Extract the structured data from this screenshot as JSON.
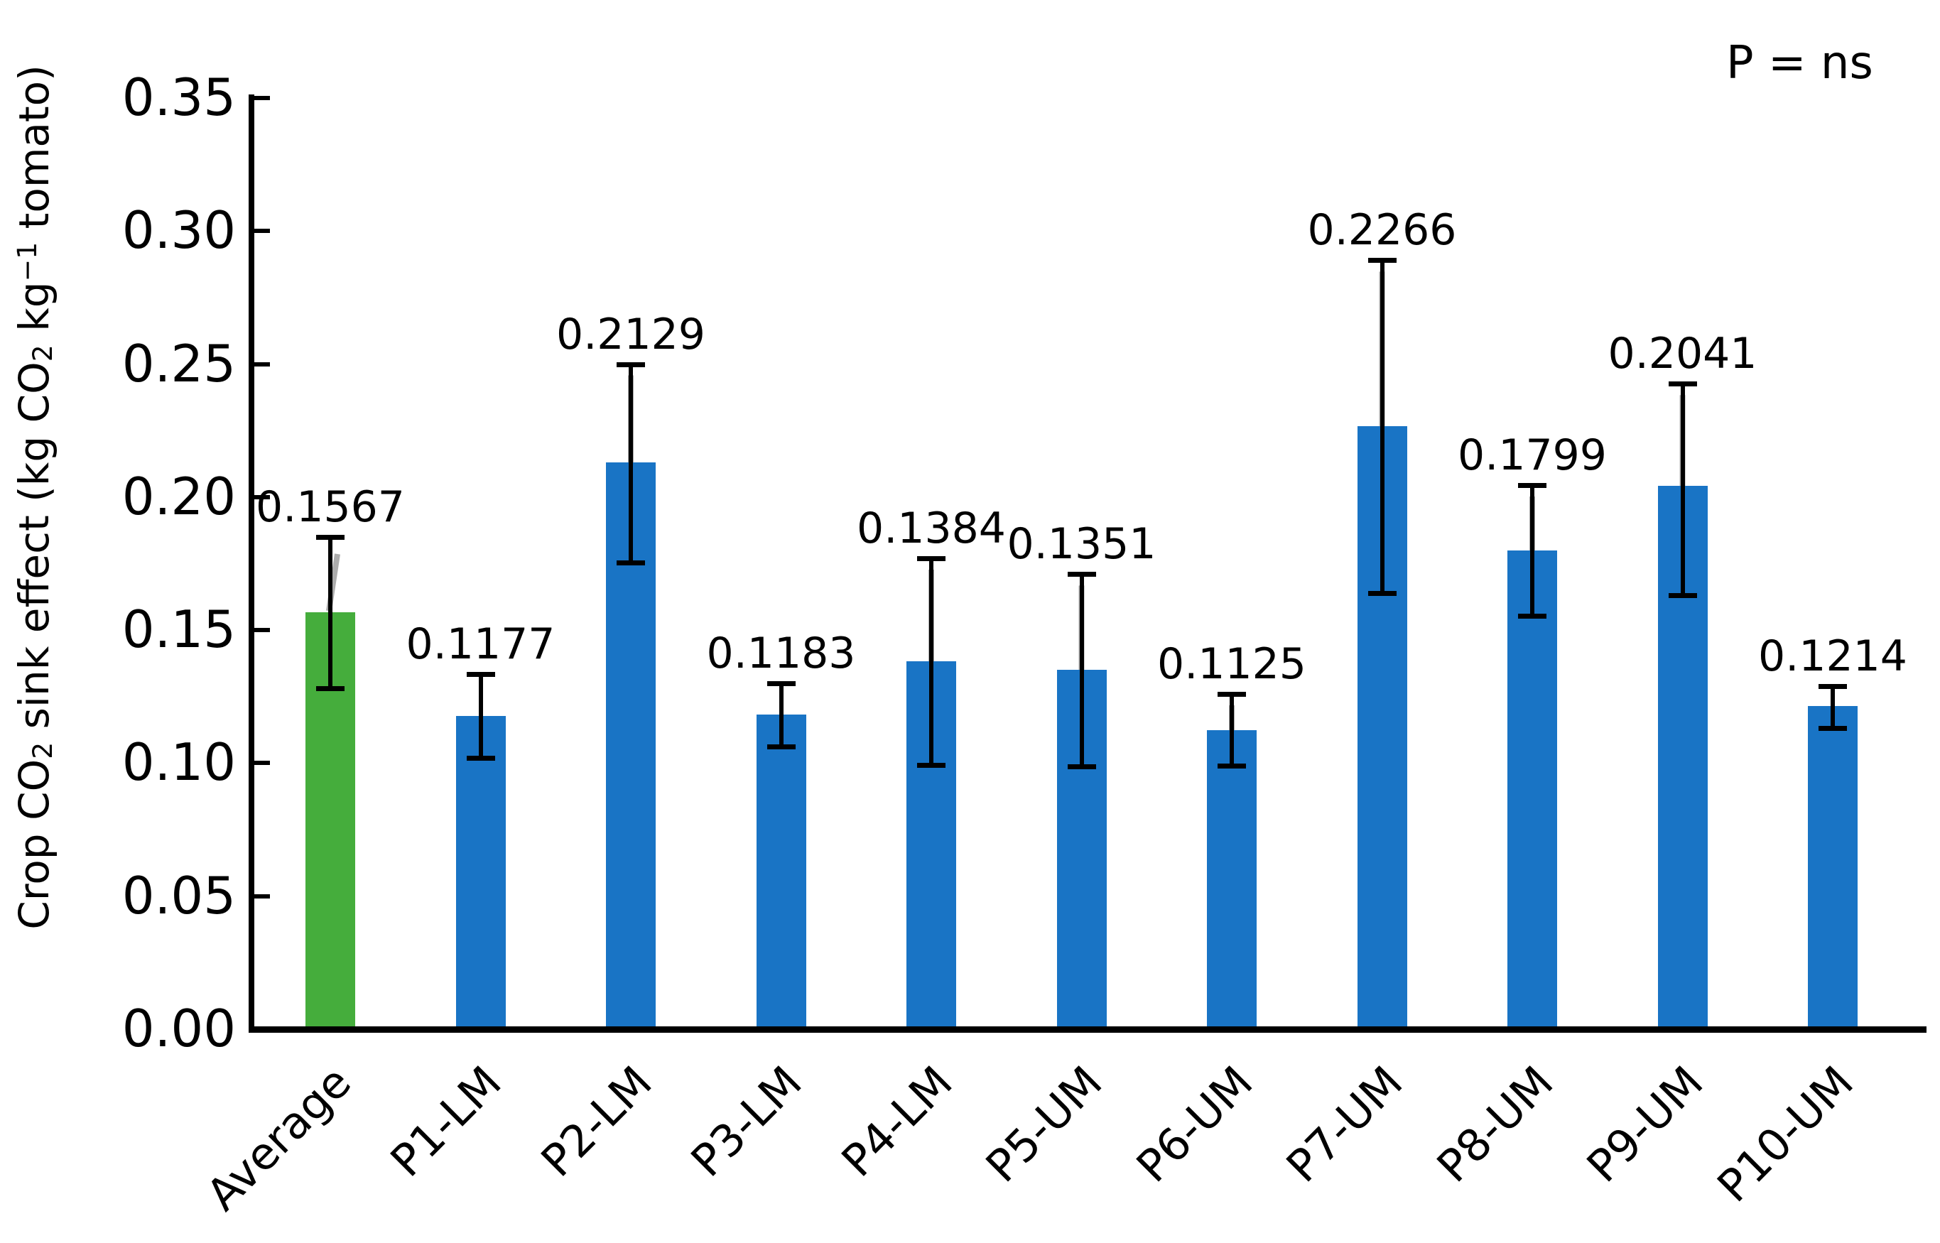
{
  "annotation": "P = ns",
  "y_axis": {
    "title_parts": [
      {
        "text": "Crop CO"
      },
      {
        "text": "2",
        "sub": true
      },
      {
        "text": " sink effect (kg CO"
      },
      {
        "text": "2",
        "sub": true
      },
      {
        "text": " kg"
      },
      {
        "text": "−1",
        "sup": true
      },
      {
        "text": " tomato)"
      }
    ],
    "tick_labels": [
      "0.00",
      "0.05",
      "0.10",
      "0.15",
      "0.20",
      "0.25",
      "0.30",
      "0.35"
    ]
  },
  "chart_data": {
    "type": "bar",
    "title": "",
    "xlabel": "",
    "ylabel": "Crop CO2 sink effect (kg CO2 kg-1 tomato)",
    "ylim": [
      0,
      0.35
    ],
    "y_tick_step": 0.05,
    "grid": false,
    "legend_position": "none",
    "annotation": "P = ns",
    "categories": [
      "Average",
      "P1-LM",
      "P2-LM",
      "P3-LM",
      "P4-LM",
      "P5-UM",
      "P6-UM",
      "P7-UM",
      "P8-UM",
      "P9-UM",
      "P10-UM"
    ],
    "values": [
      0.1567,
      0.1177,
      0.2129,
      0.1183,
      0.1384,
      0.1351,
      0.1125,
      0.2266,
      0.1799,
      0.2041,
      0.1214
    ],
    "value_labels": [
      "0.1567",
      "0.1177",
      "0.2129",
      "0.1183",
      "0.1384",
      "0.1351",
      "0.1125",
      "0.2266",
      "0.1799",
      "0.2041",
      "0.1214"
    ],
    "error_bar_top": [
      0.185,
      0.1335,
      0.25,
      0.13,
      0.177,
      0.171,
      0.126,
      0.289,
      0.2045,
      0.2426,
      0.129
    ],
    "error_bar_bottom": [
      0.128,
      0.1017,
      0.175,
      0.106,
      0.099,
      0.0985,
      0.0988,
      0.1636,
      0.1551,
      0.1628,
      0.113
    ],
    "label_leader_lines": [
      "diagonal",
      null,
      "vertical",
      null,
      "vertical",
      "vertical",
      "vertical",
      "vertical",
      "vertical",
      "vertical",
      null
    ],
    "bar_colors": {
      "highlight_category": "Average",
      "highlight": "#45AD3C",
      "default": "#1974C5"
    },
    "error_color": "#000000",
    "leader_color": "#ACACAC"
  }
}
